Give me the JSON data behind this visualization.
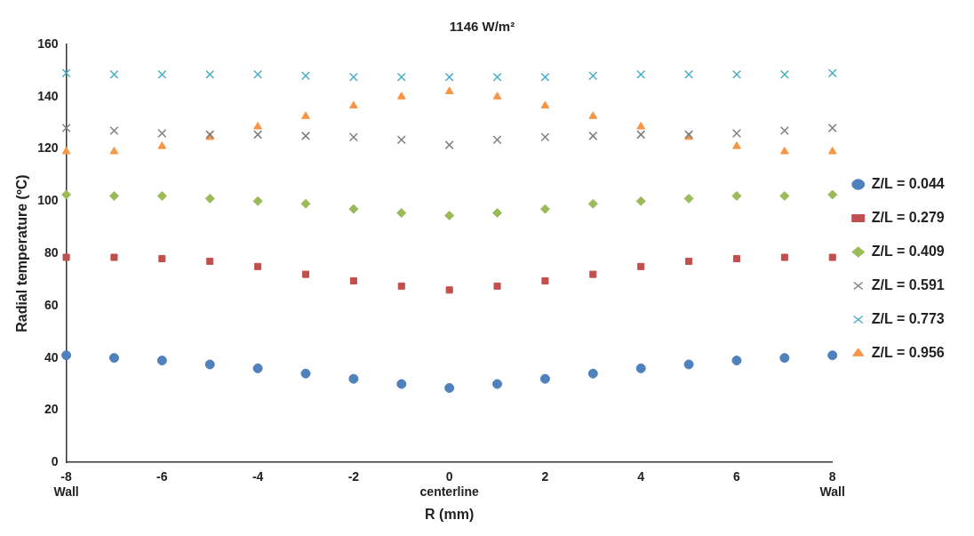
{
  "chart_data": {
    "type": "scatter",
    "title": "1146 W/m²",
    "xlabel": "R (mm)",
    "ylabel": "Radial temperature (ºC)",
    "x": [
      -8,
      -7,
      -6,
      -5,
      -4,
      -3,
      -2,
      -1,
      0,
      1,
      2,
      3,
      4,
      5,
      6,
      7,
      8
    ],
    "xlim": [
      -8,
      8
    ],
    "xticks": [
      {
        "value": -8,
        "label": "-8\nWall"
      },
      -6,
      -4,
      -2,
      {
        "value": 0,
        "label": "0\ncenterline"
      },
      2,
      4,
      6,
      {
        "value": 8,
        "label": "8\nWall"
      }
    ],
    "ylim": [
      0,
      160
    ],
    "yticks": [
      0,
      20,
      40,
      60,
      80,
      100,
      120,
      140,
      160
    ],
    "grid": false,
    "legend": "right",
    "series": [
      {
        "name": "Z/L = 0.044",
        "color": "#4f81bd",
        "marker": "circle",
        "values": [
          41,
          40,
          39,
          37.5,
          36,
          34,
          32,
          30,
          28.5,
          30,
          32,
          34,
          36,
          37.5,
          39,
          40,
          41
        ]
      },
      {
        "name": "Z/L = 0.279",
        "color": "#c0504d",
        "marker": "square",
        "values": [
          78.5,
          78.5,
          78,
          77,
          75,
          72,
          69.5,
          67.5,
          66,
          67.5,
          69.5,
          72,
          75,
          77,
          78,
          78.5,
          78.5
        ]
      },
      {
        "name": "Z/L = 0.409",
        "color": "#9bbb59",
        "marker": "diamond",
        "values": [
          102.5,
          102,
          102,
          101,
          100,
          99,
          97,
          95.5,
          94.5,
          95.5,
          97,
          99,
          100,
          101,
          102,
          102,
          102.5
        ]
      },
      {
        "name": "Z/L = 0.591",
        "color": "#7f7f7f",
        "marker": "cross",
        "values": [
          128,
          127,
          126,
          125.5,
          125.5,
          125,
          124.5,
          123.5,
          121.5,
          123.5,
          124.5,
          125,
          125.5,
          125.5,
          126,
          127,
          128
        ]
      },
      {
        "name": "Z/L = 0.773",
        "color": "#4bacc6",
        "marker": "cross",
        "values": [
          149,
          148.5,
          148.5,
          148.5,
          148.5,
          148,
          147.5,
          147.5,
          147.5,
          147.5,
          147.5,
          148,
          148.5,
          148.5,
          148.5,
          148.5,
          149
        ]
      },
      {
        "name": "Z/L = 0.956",
        "color": "#f79646",
        "marker": "triangle",
        "values": [
          119,
          119,
          121,
          124.5,
          128.5,
          132.5,
          136.5,
          140,
          142,
          140,
          136.5,
          132.5,
          128.5,
          124.5,
          121,
          119,
          119
        ]
      }
    ]
  }
}
